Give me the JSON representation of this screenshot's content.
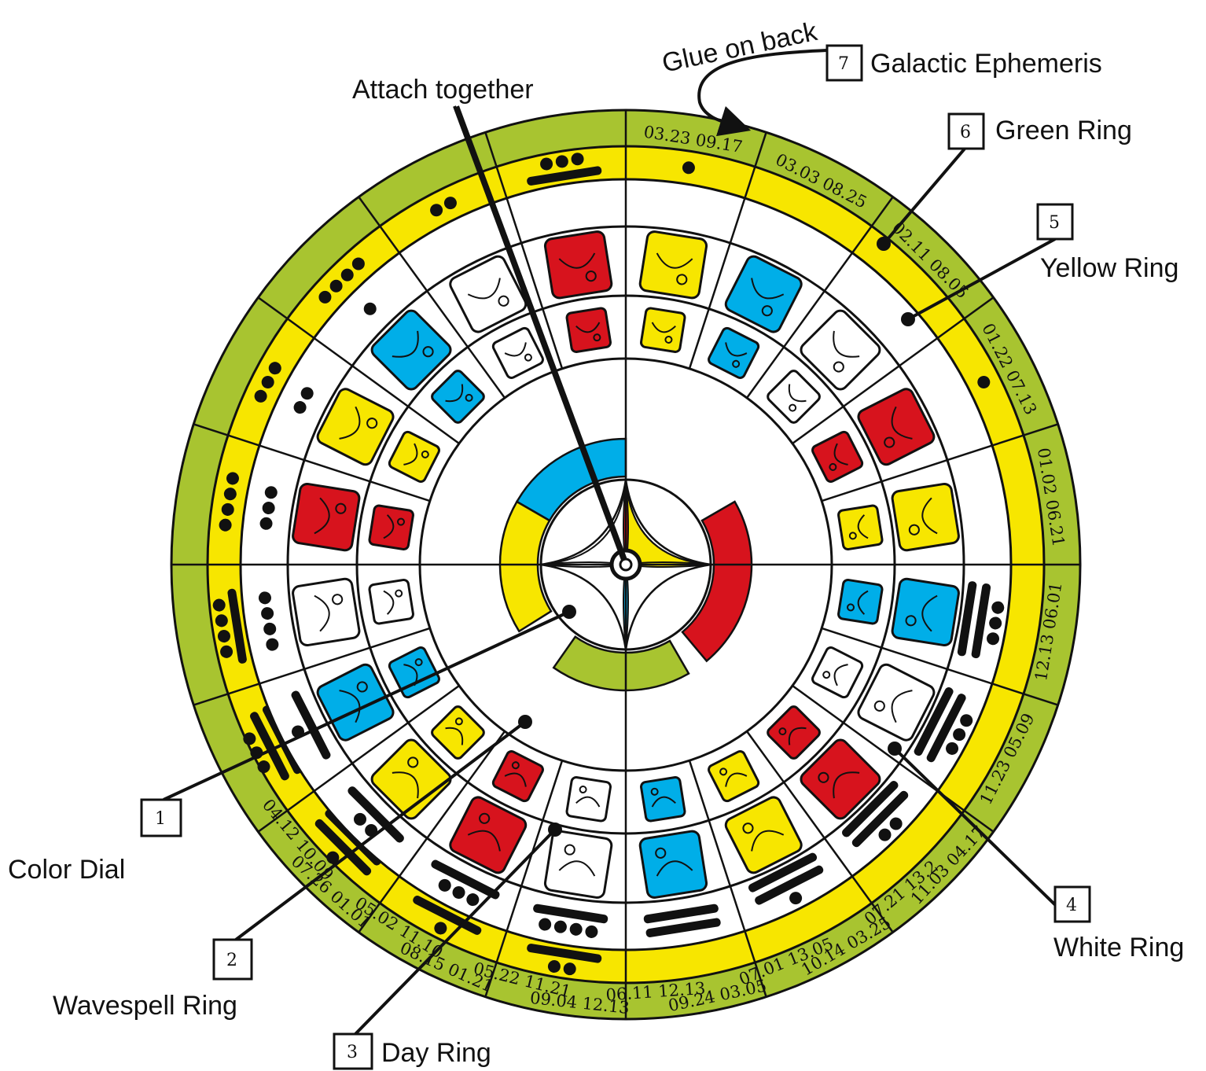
{
  "colors": {
    "green": "#a8c430",
    "yellow": "#f7e600",
    "white": "#ffffff",
    "red": "#d7131d",
    "blue": "#00aee8",
    "black": "#111111"
  },
  "labels": {
    "attach": "Attach together",
    "glue": "Glue on back",
    "items": [
      {
        "num": "1",
        "text": "Color Dial"
      },
      {
        "num": "2",
        "text": "Wavespell Ring"
      },
      {
        "num": "3",
        "text": "Day Ring"
      },
      {
        "num": "4",
        "text": "White Ring"
      },
      {
        "num": "5",
        "text": "Yellow Ring"
      },
      {
        "num": "6",
        "text": "Green Ring"
      },
      {
        "num": "7",
        "text": "Galactic Ephemeris"
      }
    ]
  },
  "ephemeris_dates": [
    "03.23 09.17",
    "03.03 08.25",
    "02.11 08.05",
    "01.22 07.13",
    "01.02 06.21",
    "12.13 06.01",
    "11.23 05.09",
    "11.03 04.17",
    "07.21 13.2",
    "10.14 03.25",
    "07.01 13.05",
    "09.24 03.05",
    "06.11 12.13",
    "09.04  12.13",
    "05.22 11.21",
    "08.15 01.21",
    "05.02 11.10",
    "07.26 01.01",
    "04.12 10.09"
  ],
  "wavespell_numbers": [
    1,
    2,
    3,
    4,
    5,
    6,
    7,
    8,
    9,
    10,
    11,
    12,
    13
  ],
  "tone_numbers": [
    1,
    2,
    3,
    4,
    5,
    6,
    7,
    8,
    9,
    10,
    11,
    12,
    13
  ],
  "glyph_colors_outer": [
    "yellow",
    "blue",
    "white",
    "red",
    "yellow",
    "blue",
    "white",
    "red",
    "yellow",
    "blue",
    "white",
    "red",
    "yellow",
    "blue",
    "white",
    "red",
    "yellow",
    "blue",
    "white",
    "red"
  ],
  "glyph_colors_inner": [
    "yellow",
    "blue",
    "white",
    "red",
    "yellow",
    "blue",
    "white",
    "red",
    "yellow",
    "blue",
    "white",
    "red",
    "yellow",
    "blue",
    "white",
    "red",
    "yellow",
    "blue",
    "white",
    "red"
  ]
}
